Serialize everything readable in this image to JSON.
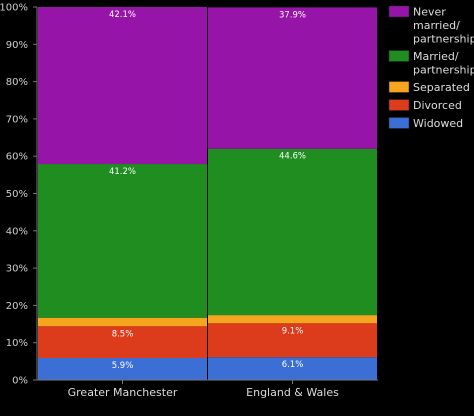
{
  "chart_data": {
    "type": "bar",
    "stacked": true,
    "categories": [
      "Greater Manchester",
      "England & Wales"
    ],
    "series": [
      {
        "name": "Widowed",
        "color": "#3c6fd6",
        "values": [
          5.9,
          6.1
        ],
        "labels": [
          "5.9%",
          "6.1%"
        ]
      },
      {
        "name": "Divorced",
        "color": "#dd3c1c",
        "values": [
          8.5,
          9.1
        ],
        "labels": [
          "8.5%",
          "9.1%"
        ]
      },
      {
        "name": "Separated",
        "color": "#f5a51e",
        "values": [
          2.3,
          2.2
        ],
        "labels": [
          "",
          ""
        ]
      },
      {
        "name": "Married/ partnership",
        "color": "#1f8d1f",
        "values": [
          41.2,
          44.6
        ],
        "labels": [
          "41.2%",
          "44.6%"
        ]
      },
      {
        "name": "Never married/ partnership",
        "color": "#9714a8",
        "values": [
          42.1,
          37.9
        ],
        "labels": [
          "42.1%",
          "37.9%"
        ]
      }
    ],
    "legend_order": [
      "Never married/ partnership",
      "Married/ partnership",
      "Separated",
      "Divorced",
      "Widowed"
    ],
    "legend_lines": {
      "Never married/ partnership": [
        "Never",
        "married/",
        "partnership"
      ],
      "Married/ partnership": [
        "Married/",
        "partnership"
      ],
      "Separated": [
        "Separated"
      ],
      "Divorced": [
        "Divorced"
      ],
      "Widowed": [
        "Widowed"
      ]
    },
    "y_ticks": [
      "0%",
      "10%",
      "20%",
      "30%",
      "40%",
      "50%",
      "60%",
      "70%",
      "80%",
      "90%",
      "100%"
    ],
    "ylim": [
      0,
      100
    ],
    "legend_position": "right",
    "grid": false
  }
}
